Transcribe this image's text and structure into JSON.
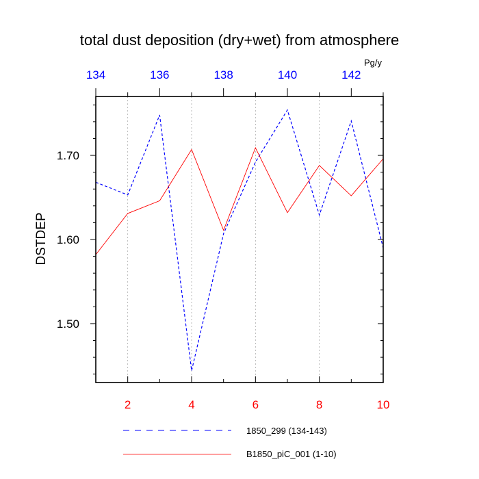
{
  "chart_data": {
    "type": "line",
    "title": "total dust deposition (dry+wet) from atmosphere",
    "units": "Pg/y",
    "ylabel": "DSTDEP",
    "xlabel": "",
    "bottom_axis": {
      "range": [
        1,
        10
      ],
      "ticks": [
        2,
        4,
        6,
        8,
        10
      ],
      "tick_labels": [
        "2",
        "4",
        "6",
        "8",
        "10"
      ],
      "color": "#ff0000"
    },
    "top_axis": {
      "range": [
        134,
        143
      ],
      "ticks": [
        134,
        136,
        138,
        140,
        142
      ],
      "tick_labels": [
        "134",
        "136",
        "138",
        "140",
        "142"
      ],
      "color": "#0000ff"
    },
    "y_axis": {
      "range": [
        1.43,
        1.77
      ],
      "ticks": [
        1.5,
        1.6,
        1.7
      ],
      "tick_labels": [
        "1.50",
        "1.60",
        "1.70"
      ]
    },
    "grid": "vertical dotted at bottom-axis ticks",
    "series": [
      {
        "name": "1850_299 (134-143)",
        "axis": "top",
        "color": "#0000ff",
        "style": "dashed",
        "x": [
          134,
          135,
          136,
          137,
          138,
          139,
          140,
          141,
          142,
          143
        ],
        "y": [
          1.668,
          1.653,
          1.748,
          1.444,
          1.607,
          1.692,
          1.754,
          1.629,
          1.741,
          1.59
        ]
      },
      {
        "name": "B1850_piC_001 (1-10)",
        "axis": "bottom",
        "color": "#ff0000",
        "style": "solid",
        "x": [
          1,
          2,
          3,
          4,
          5,
          6,
          7,
          8,
          9,
          10
        ],
        "y": [
          1.582,
          1.631,
          1.646,
          1.707,
          1.611,
          1.709,
          1.632,
          1.688,
          1.652,
          1.696
        ]
      }
    ],
    "legend": "bottom"
  }
}
